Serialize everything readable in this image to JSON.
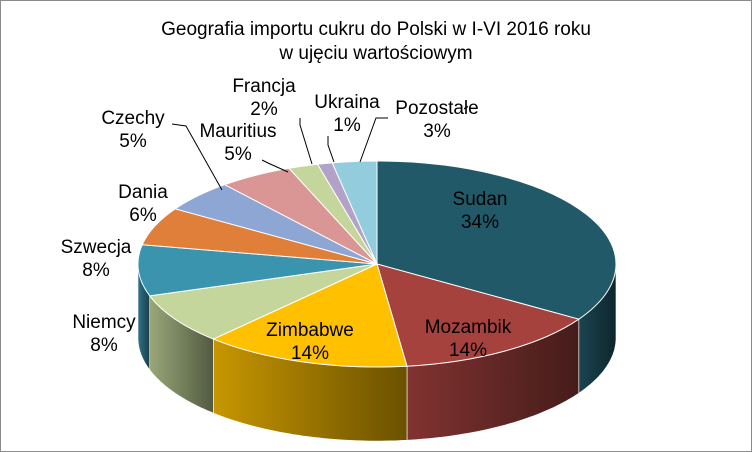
{
  "chart_data": {
    "type": "pie",
    "title_line1": "Geografia importu cukru do Polski  w I-VI 2016 roku",
    "title_line2": "w ujęciu wartościowym",
    "legend": "none",
    "slices": [
      {
        "label": "Sudan",
        "value": 34,
        "pct": "34%",
        "color": "#215968"
      },
      {
        "label": "Mozambik",
        "value": 14,
        "pct": "14%",
        "color": "#A5423E"
      },
      {
        "label": "Zimbabwe",
        "value": 14,
        "pct": "14%",
        "color": "#FFC000"
      },
      {
        "label": "Niemcy",
        "value": 8,
        "pct": "8%",
        "color": "#C4D69B"
      },
      {
        "label": "Szwecja",
        "value": 8,
        "pct": "8%",
        "color": "#3B94AE"
      },
      {
        "label": "Dania",
        "value": 6,
        "pct": "6%",
        "color": "#E07F3A"
      },
      {
        "label": "Czechy",
        "value": 5,
        "pct": "5%",
        "color": "#8EA6D4"
      },
      {
        "label": "Mauritius",
        "value": 5,
        "pct": "5%",
        "color": "#D99694"
      },
      {
        "label": "Francja",
        "value": 2,
        "pct": "2%",
        "color": "#C4D69B"
      },
      {
        "label": "Ukraina",
        "value": 1,
        "pct": "1%",
        "color": "#B2A2C7"
      },
      {
        "label": "Pozostałe",
        "value": 3,
        "pct": "3%",
        "color": "#93CDDD"
      }
    ]
  }
}
